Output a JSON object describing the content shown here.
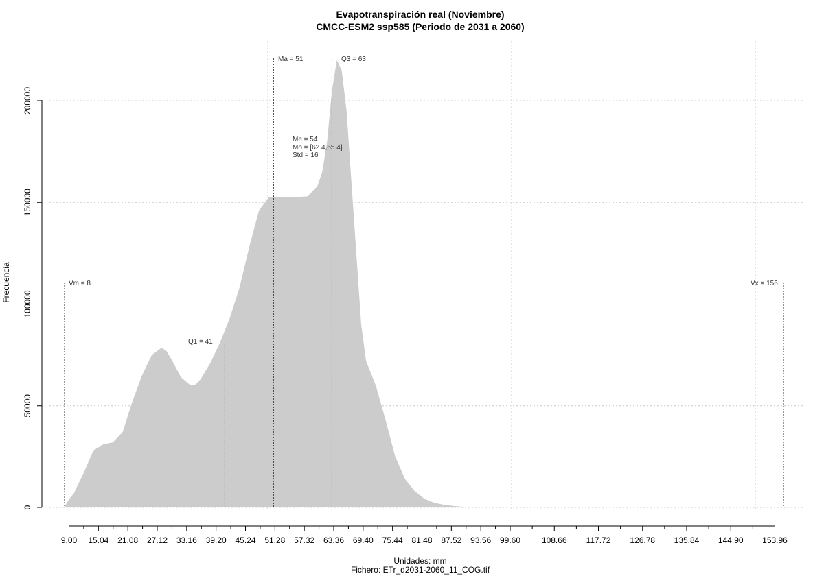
{
  "chart_data": {
    "type": "area",
    "title": "Evapotranspiración real (Noviembre)",
    "subtitle": "CMCC-ESM2 ssp585 (Periodo de 2031 a 2060)",
    "xlabel": "Unidades: mm",
    "ylabel": "Frecuencia",
    "footer": "Fichero: ETr_d2031-2060_11_COG.tif",
    "xlim": [
      9,
      156
    ],
    "ylim": [
      0,
      220000
    ],
    "grid": true,
    "fill_color": "#cccccc",
    "x_ticks": [
      "9.00",
      "15.04",
      "21.08",
      "27.12",
      "33.16",
      "39.20",
      "45.24",
      "51.28",
      "57.32",
      "63.36",
      "69.40",
      "75.44",
      "81.48",
      "87.52",
      "93.56",
      "99.60",
      "108.66",
      "117.72",
      "126.78",
      "135.84",
      "144.90",
      "153.96"
    ],
    "y_ticks": [
      "0",
      "50000",
      "100000",
      "150000",
      "200000"
    ],
    "x": [
      8,
      9,
      10,
      12,
      14,
      16,
      18,
      20,
      22,
      24,
      26,
      28,
      29,
      30,
      32,
      34,
      35,
      36,
      38,
      40,
      42,
      44,
      46,
      48,
      50,
      51,
      52,
      54,
      56,
      58,
      60,
      61,
      62,
      63,
      64,
      65,
      66,
      67,
      68,
      69,
      70,
      72,
      74,
      76,
      78,
      80,
      82,
      84,
      86,
      88,
      90,
      95,
      100,
      110,
      120,
      140,
      156
    ],
    "y": [
      0,
      4000,
      7000,
      17000,
      28000,
      31000,
      32000,
      37000,
      52000,
      65000,
      75000,
      78500,
      77000,
      73000,
      64000,
      60000,
      60500,
      63000,
      71000,
      81000,
      93000,
      108000,
      128000,
      146000,
      152500,
      152700,
      152500,
      152500,
      152700,
      153000,
      158000,
      165000,
      180000,
      205000,
      220000,
      215000,
      195000,
      160000,
      125000,
      90000,
      72000,
      60000,
      43000,
      25000,
      14000,
      8000,
      4200,
      2300,
      1300,
      700,
      350,
      100,
      30,
      5,
      0,
      0,
      0
    ],
    "stats": {
      "vm_label": "Vm = 8",
      "q1_label": "Q1 = 41",
      "ma_label": "Ma = 51",
      "q3_label": "Q3 = 63",
      "me_label": "Me = 54",
      "mo_label": "Mo = [62.4,65.4]",
      "std_label": "Std = 16",
      "vx_label": "Vx = 156"
    },
    "markers": {
      "vm": 8,
      "q1": 41,
      "ma": 51,
      "q3": 63,
      "vx": 156
    }
  }
}
